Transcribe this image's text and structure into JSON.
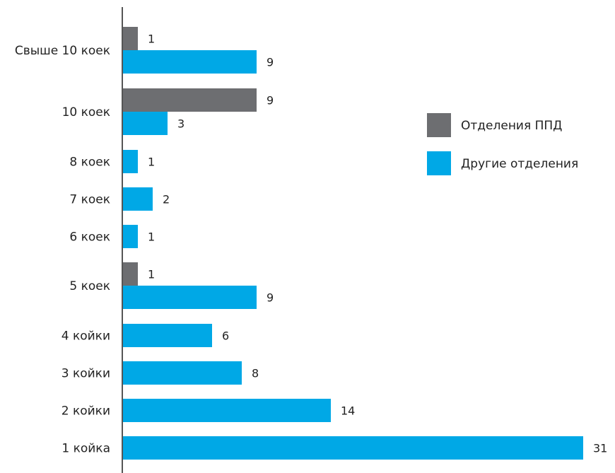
{
  "chart_data": {
    "type": "bar",
    "orientation": "horizontal",
    "categories": [
      "Свыше 10 коек",
      "10 коек",
      "8 коек",
      "7 коек",
      "6 коек",
      "5 коек",
      "4 койки",
      "3 койки",
      "2 койки",
      "1 койка"
    ],
    "series": [
      {
        "name": "Отделения ППД",
        "color": "#6d6e71",
        "values": [
          1,
          9,
          null,
          null,
          null,
          1,
          null,
          null,
          null,
          null
        ]
      },
      {
        "name": "Другие отделения",
        "color": "#00a8e6",
        "values": [
          9,
          3,
          1,
          2,
          1,
          9,
          6,
          8,
          14,
          31
        ]
      }
    ],
    "legend": {
      "position": "right"
    },
    "grid": false
  }
}
